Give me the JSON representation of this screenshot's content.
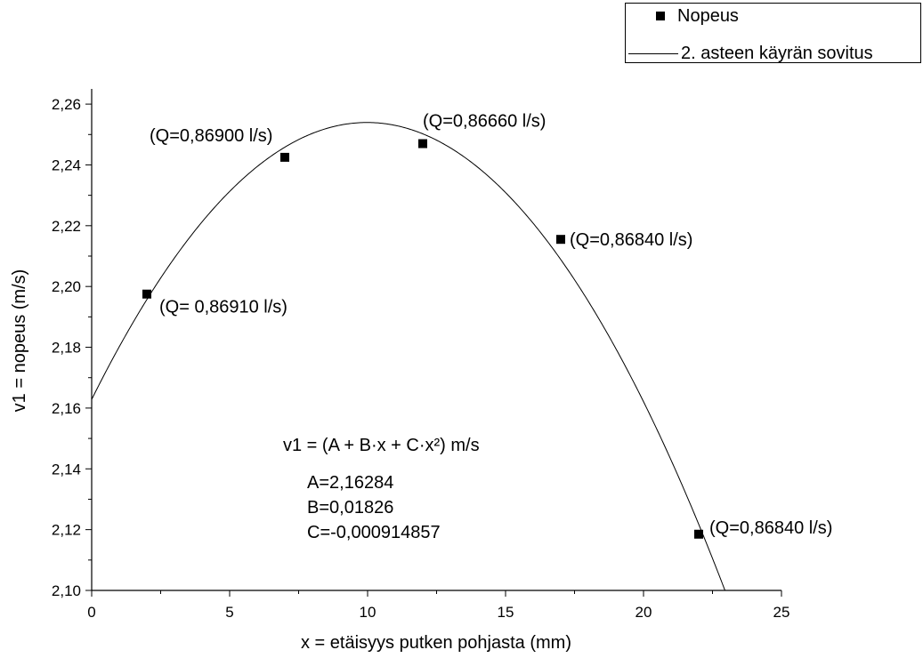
{
  "chart_data": {
    "type": "scatter",
    "xlabel": "x = etäisyys putken pohjasta (mm)",
    "ylabel": "v1 = nopeus (m/s)",
    "xlim": [
      0,
      25
    ],
    "ylim": [
      2.1,
      2.265
    ],
    "x_ticks": [
      0,
      5,
      10,
      15,
      20,
      25
    ],
    "x_tick_labels": [
      "0",
      "5",
      "10",
      "15",
      "20",
      "25"
    ],
    "y_ticks": [
      2.1,
      2.12,
      2.14,
      2.16,
      2.18,
      2.2,
      2.22,
      2.24,
      2.26
    ],
    "y_tick_labels": [
      "2,10",
      "2,12",
      "2,14",
      "2,16",
      "2,18",
      "2,20",
      "2,22",
      "2,24",
      "2,26"
    ],
    "grid": false,
    "legend_position": "top-right",
    "series": [
      {
        "name": "Nopeus",
        "kind": "points",
        "marker": "square",
        "x": [
          2,
          7,
          12,
          17,
          22
        ],
        "y": [
          2.1975,
          2.2425,
          2.247,
          2.2155,
          2.1185
        ],
        "point_labels": [
          "(Q= 0,86910 l/s)",
          "(Q=0,86900 l/s)",
          "(Q=0,86660 l/s)",
          "(Q=0,86840 l/s)",
          "(Q=0,86840 l/s)"
        ]
      },
      {
        "name": "2. asteen käyrän sovitus",
        "kind": "fit",
        "model": "quadratic",
        "coefficients": {
          "A": 2.16284,
          "B": 0.01826,
          "C": -0.000914857
        }
      }
    ],
    "annotation": {
      "formula": "v1 = (A + B·x + C·x²) m/s",
      "lines": [
        "A=2,16284",
        "B=0,01826",
        "C=-0,000914857"
      ]
    }
  },
  "colors": {
    "ink": "#000000",
    "background": "#ffffff"
  }
}
